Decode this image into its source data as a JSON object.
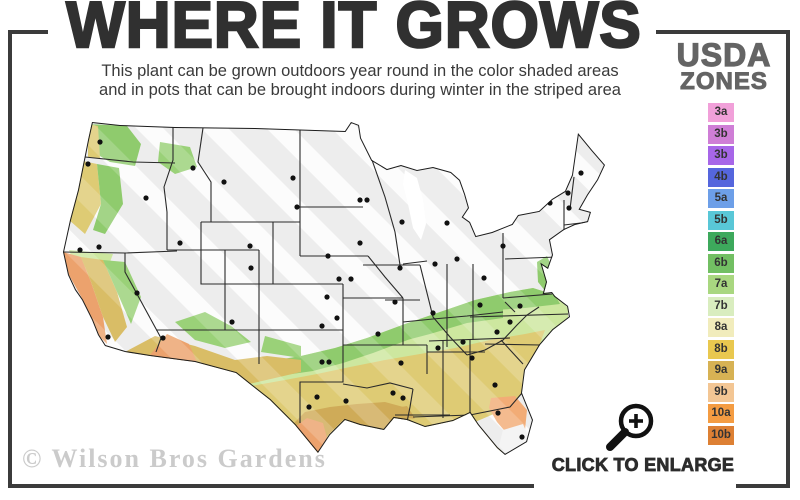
{
  "title": "WHERE IT GROWS",
  "subtitle": {
    "line1": "This plant can be grown outdoors year round in the color shaded areas",
    "line2": "and in pots that can be brought indoors during winter in the striped area"
  },
  "legend": {
    "header_line1": "USDA",
    "header_line2": "ZONES",
    "zones": [
      {
        "label": "3a",
        "color": "#f1a0d9"
      },
      {
        "label": "3b",
        "color": "#cf7ed6"
      },
      {
        "label": "3b",
        "color": "#a766e8"
      },
      {
        "label": "4b",
        "color": "#5566dd"
      },
      {
        "label": "5a",
        "color": "#6d9fe8"
      },
      {
        "label": "5b",
        "color": "#59c7d7"
      },
      {
        "label": "6a",
        "color": "#3da95c"
      },
      {
        "label": "6b",
        "color": "#72bf63"
      },
      {
        "label": "7a",
        "color": "#a9d780"
      },
      {
        "label": "7b",
        "color": "#d9edbf"
      },
      {
        "label": "8a",
        "color": "#f1ecbc"
      },
      {
        "label": "8b",
        "color": "#e9c84f"
      },
      {
        "label": "9a",
        "color": "#d7b254"
      },
      {
        "label": "9b",
        "color": "#f3c694"
      },
      {
        "label": "10a",
        "color": "#f49c42"
      },
      {
        "label": "10b",
        "color": "#dd8034"
      }
    ]
  },
  "map": {
    "watermark": "© Wilson Bros Gardens",
    "base_color": "#ededed",
    "outline_color": "#1c1c1c",
    "stripe_color": "#ffffff",
    "zone_colors": {
      "pale_green": "#cde79f",
      "green": "#8fcb6d",
      "khaki": "#decb74",
      "gold": "#cfab58",
      "orange_tan": "#eca26d",
      "salmon": "#f2ac76"
    },
    "city_dots": [
      [
        45,
        30
      ],
      [
        33,
        52
      ],
      [
        91,
        86
      ],
      [
        25,
        138
      ],
      [
        44,
        135
      ],
      [
        82,
        181
      ],
      [
        53,
        225
      ],
      [
        108,
        226
      ],
      [
        138,
        56
      ],
      [
        169,
        70
      ],
      [
        238,
        66
      ],
      [
        242,
        95
      ],
      [
        273,
        144
      ],
      [
        195,
        134
      ],
      [
        125,
        131
      ],
      [
        196,
        156
      ],
      [
        177,
        210
      ],
      [
        272,
        185
      ],
      [
        284,
        167
      ],
      [
        267,
        214
      ],
      [
        282,
        206
      ],
      [
        305,
        88
      ],
      [
        312,
        88
      ],
      [
        347,
        110
      ],
      [
        392,
        111
      ],
      [
        305,
        131
      ],
      [
        296,
        167
      ],
      [
        340,
        190
      ],
      [
        345,
        156
      ],
      [
        380,
        152
      ],
      [
        402,
        147
      ],
      [
        448,
        134
      ],
      [
        495,
        91
      ],
      [
        499,
        73
      ],
      [
        513,
        81
      ],
      [
        526,
        61
      ],
      [
        514,
        96
      ],
      [
        429,
        166
      ],
      [
        465,
        194
      ],
      [
        378,
        201
      ],
      [
        425,
        193
      ],
      [
        455,
        210
      ],
      [
        442,
        220
      ],
      [
        408,
        230
      ],
      [
        417,
        246
      ],
      [
        383,
        236
      ],
      [
        346,
        251
      ],
      [
        338,
        281
      ],
      [
        348,
        286
      ],
      [
        323,
        222
      ],
      [
        267,
        250
      ],
      [
        274,
        250
      ],
      [
        262,
        285
      ],
      [
        291,
        289
      ],
      [
        254,
        295
      ],
      [
        440,
        273
      ],
      [
        443,
        301
      ],
      [
        467,
        325
      ]
    ]
  },
  "enlarge": {
    "label": "CLICK TO ENLARGE",
    "icon": "magnifier-plus-icon"
  }
}
